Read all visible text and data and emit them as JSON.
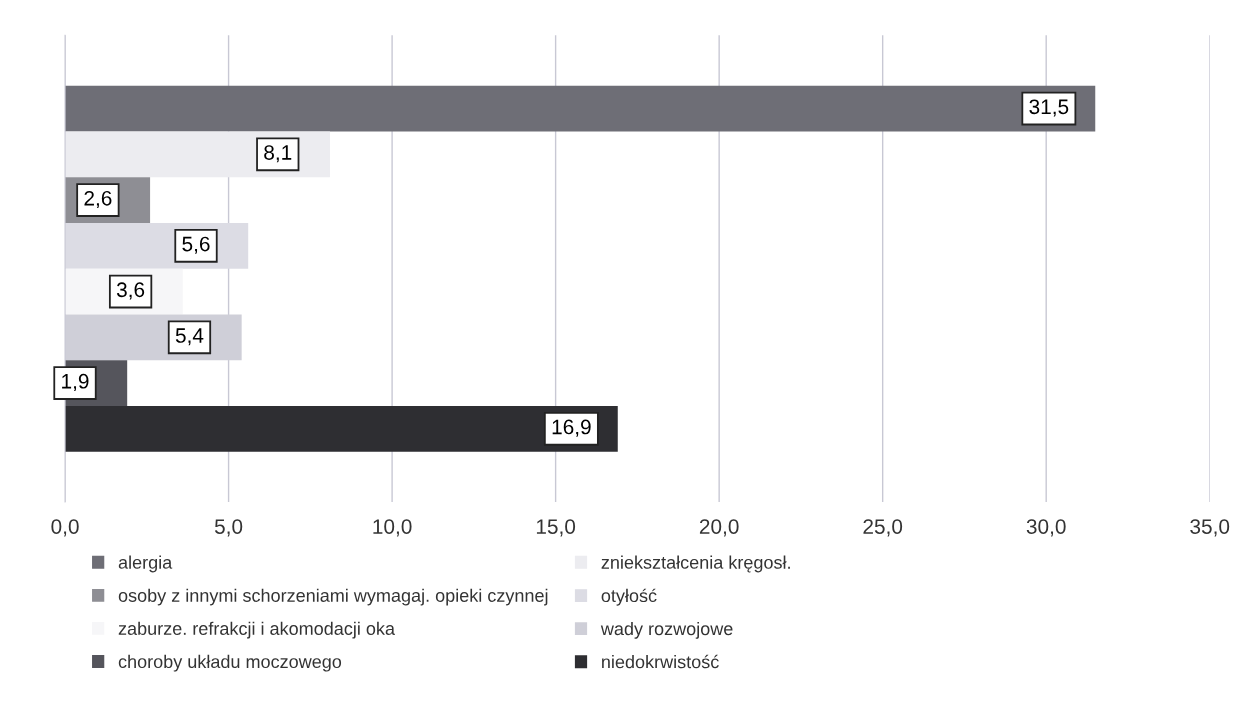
{
  "chart_data": {
    "type": "bar",
    "orientation": "horizontal",
    "categories": [
      null
    ],
    "series": [
      {
        "name": "alergia",
        "color": "#6e6e76",
        "values": [
          31.5
        ],
        "value_labels": [
          "31,5"
        ]
      },
      {
        "name": "zniekształcenia kręgosł.",
        "color": "#ececf0",
        "values": [
          8.1
        ],
        "value_labels": [
          "8,1"
        ]
      },
      {
        "name": "osoby z innymi schorzeniami wymagaj. opieki czynnej",
        "color": "#8e8e94",
        "values": [
          2.6
        ],
        "value_labels": [
          "2,6"
        ]
      },
      {
        "name": "otyłość",
        "color": "#dcdce4",
        "values": [
          5.6
        ],
        "value_labels": [
          "5,6"
        ]
      },
      {
        "name": "zaburze. refrakcji i akomodacji oka",
        "color": "#f6f6f8",
        "values": [
          3.6
        ],
        "value_labels": [
          "3,6"
        ]
      },
      {
        "name": "wady rozwojowe",
        "color": "#cfcfd8",
        "values": [
          5.4
        ],
        "value_labels": [
          "5,4"
        ]
      },
      {
        "name": "choroby układu moczowego",
        "color": "#55555c",
        "values": [
          1.9
        ],
        "value_labels": [
          "1,9"
        ]
      },
      {
        "name": "niedokrwistość",
        "color": "#2e2e32",
        "values": [
          16.9
        ],
        "value_labels": [
          "16,9"
        ]
      }
    ],
    "xlim": [
      0,
      35
    ],
    "xticks": [
      {
        "value": 0,
        "label": "0,0"
      },
      {
        "value": 5,
        "label": "5,0"
      },
      {
        "value": 10,
        "label": "10,0"
      },
      {
        "value": 15,
        "label": "15,0"
      },
      {
        "value": 20,
        "label": "20,0"
      },
      {
        "value": 25,
        "label": "25,0"
      },
      {
        "value": 30,
        "label": "30,0"
      },
      {
        "value": 35,
        "label": "35,0"
      }
    ],
    "grid": "x",
    "legend": "bottom"
  }
}
